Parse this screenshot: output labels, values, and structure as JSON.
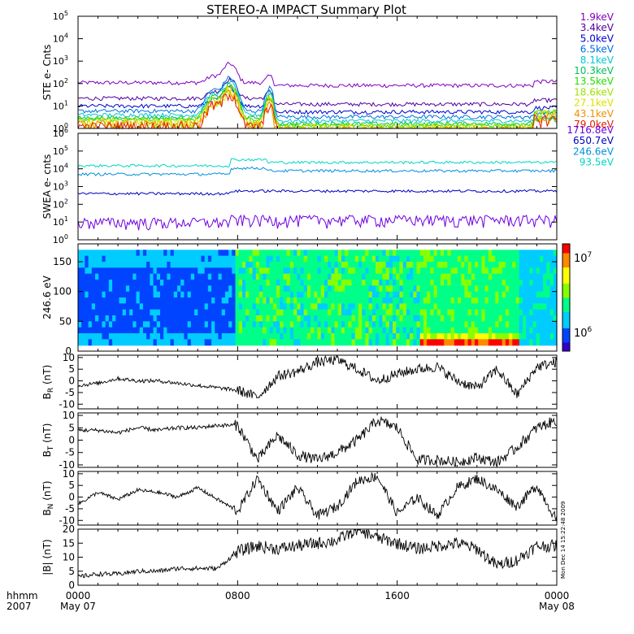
{
  "title": "STEREO-A IMPACT Summary Plot",
  "time_axis": {
    "hhmm_label": "hhmm",
    "year_label": "2007",
    "ticks": [
      {
        "time": "0000",
        "date": "May 07",
        "hours": 0
      },
      {
        "time": "0800",
        "date": "",
        "hours": 8
      },
      {
        "time": "1600",
        "date": "",
        "hours": 16
      },
      {
        "time": "0000",
        "date": "May 08",
        "hours": 24
      }
    ],
    "range_hours": [
      0,
      24
    ]
  },
  "timestamp": "Mon Dec 14 15:22:48 2009",
  "colorbar": {
    "top_label_base": "10",
    "top_label_exp": "7",
    "bottom_label_base": "10",
    "bottom_label_exp": "6",
    "range": [
      1000000,
      10000000
    ],
    "colors": [
      "#3300cc",
      "#0044ff",
      "#00ccff",
      "#00ff88",
      "#88ff00",
      "#ffff00",
      "#ff8800",
      "#ff0000"
    ]
  },
  "chart_data": [
    {
      "id": "ste",
      "type": "line",
      "ylabel": "STE e- Cnts",
      "yscale": "log",
      "ylim": [
        1,
        100000
      ],
      "yticks": [
        {
          "base": "10",
          "exp": "0"
        },
        {
          "base": "10",
          "exp": "1"
        },
        {
          "base": "10",
          "exp": "2"
        },
        {
          "base": "10",
          "exp": "3"
        },
        {
          "base": "10",
          "exp": "4"
        },
        {
          "base": "10",
          "exp": "5"
        }
      ],
      "series": [
        {
          "name": "1.9keV",
          "color": "#8000c0",
          "baseline": 110
        },
        {
          "name": "3.4keV",
          "color": "#5000a0",
          "baseline": 22
        },
        {
          "name": "5.0keV",
          "color": "#0000d0",
          "baseline": 10
        },
        {
          "name": "6.5keV",
          "color": "#0070e0",
          "baseline": 6
        },
        {
          "name": "8.1keV",
          "color": "#00c8d0",
          "baseline": 4
        },
        {
          "name": "10.3keV",
          "color": "#00c060",
          "baseline": 3
        },
        {
          "name": "13.5keV",
          "color": "#20e000",
          "baseline": 2.5
        },
        {
          "name": "18.6keV",
          "color": "#a0e000",
          "baseline": 2
        },
        {
          "name": "27.1keV",
          "color": "#e0e000",
          "baseline": 1.7
        },
        {
          "name": "43.1keV",
          "color": "#f09000",
          "baseline": 1.4
        },
        {
          "name": "79.0keV",
          "color": "#e02000",
          "baseline": 1.2
        }
      ]
    },
    {
      "id": "swea",
      "type": "line",
      "ylabel": "SWEA e- cnts",
      "yscale": "log",
      "ylim": [
        1,
        1000000
      ],
      "yticks": [
        {
          "base": "10",
          "exp": "0"
        },
        {
          "base": "10",
          "exp": "1"
        },
        {
          "base": "10",
          "exp": "2"
        },
        {
          "base": "10",
          "exp": "3"
        },
        {
          "base": "10",
          "exp": "4"
        },
        {
          "base": "10",
          "exp": "5"
        },
        {
          "base": "10",
          "exp": "6"
        }
      ],
      "series": [
        {
          "name": "1716.8eV",
          "color": "#7000e0",
          "baseline": 10
        },
        {
          "name": "650.7eV",
          "color": "#0000c0",
          "baseline": 400
        },
        {
          "name": "246.6eV",
          "color": "#0090e0",
          "baseline": 5000
        },
        {
          "name": "93.5eV",
          "color": "#00d8c0",
          "baseline": 15000
        }
      ]
    },
    {
      "id": "pad",
      "type": "heatmap",
      "ylabel": "246.6 eV",
      "ylim": [
        0,
        180
      ],
      "yticks": [
        "0",
        "50",
        "100",
        "150"
      ],
      "ytick_values": [
        0,
        50,
        100,
        150
      ]
    },
    {
      "id": "br",
      "type": "line",
      "ylabel_main": "B",
      "ylabel_sub": "R",
      "ylabel_unit": " (nT)",
      "ylim": [
        -12,
        11
      ],
      "yticks": [
        "-10",
        "-5",
        "0",
        "5",
        "10"
      ],
      "ytick_values": [
        -10,
        -5,
        0,
        5,
        10
      ],
      "x": [
        0,
        1,
        2,
        3,
        4,
        5,
        6,
        7,
        8,
        9,
        10,
        11,
        12,
        13,
        14,
        15,
        16,
        17,
        18,
        19,
        20,
        21,
        22,
        23,
        24
      ],
      "y": [
        -2,
        -1,
        1,
        0,
        0,
        -1,
        -2,
        -3,
        -4,
        -7,
        2,
        4,
        8,
        9,
        5,
        0,
        3,
        5,
        6,
        0,
        -3,
        5,
        -6,
        6,
        8
      ]
    },
    {
      "id": "bt",
      "type": "line",
      "ylabel_main": "B",
      "ylabel_sub": "T",
      "ylabel_unit": " (nT)",
      "ylim": [
        -11,
        11
      ],
      "yticks": [
        "-10",
        "-5",
        "0",
        "5",
        "10"
      ],
      "ytick_values": [
        -10,
        -5,
        0,
        5,
        10
      ],
      "x": [
        0,
        1,
        2,
        3,
        4,
        5,
        6,
        7,
        8,
        9,
        10,
        11,
        12,
        13,
        14,
        15,
        16,
        17,
        18,
        19,
        20,
        21,
        22,
        23,
        24
      ],
      "y": [
        4,
        4,
        3,
        5,
        4,
        5,
        5,
        6,
        6,
        -8,
        2,
        -6,
        -8,
        -5,
        0,
        8,
        5,
        -8,
        -8,
        -9,
        -7,
        -9,
        -3,
        5,
        8
      ]
    },
    {
      "id": "bn",
      "type": "line",
      "ylabel_main": "B",
      "ylabel_sub": "N",
      "ylabel_unit": " (nT)",
      "ylim": [
        -12,
        11
      ],
      "yticks": [
        "-10",
        "-5",
        "0",
        "5",
        "10"
      ],
      "ytick_values": [
        -10,
        -5,
        0,
        5,
        10
      ],
      "x": [
        0,
        1,
        2,
        3,
        4,
        5,
        6,
        7,
        8,
        9,
        10,
        11,
        12,
        13,
        14,
        15,
        16,
        17,
        18,
        19,
        20,
        21,
        22,
        23,
        24
      ],
      "y": [
        -3,
        2,
        -1,
        3,
        2,
        0,
        4,
        -1,
        -6,
        8,
        -6,
        4,
        -8,
        -4,
        7,
        9,
        -7,
        0,
        -8,
        4,
        8,
        3,
        -4,
        5,
        -10
      ]
    },
    {
      "id": "bmag",
      "type": "line",
      "ylabel_main": "|B|",
      "ylabel_sub": "",
      "ylabel_unit": " (nT)",
      "ylim": [
        0,
        20
      ],
      "yticks": [
        "0",
        "5",
        "10",
        "15",
        "20"
      ],
      "ytick_values": [
        0,
        5,
        10,
        15,
        20
      ],
      "x": [
        0,
        1,
        2,
        3,
        4,
        5,
        6,
        7,
        8,
        9,
        10,
        11,
        12,
        13,
        14,
        15,
        16,
        17,
        18,
        19,
        20,
        21,
        22,
        23,
        24
      ],
      "y": [
        3,
        4,
        4,
        5,
        5,
        6,
        6,
        6,
        12,
        14,
        13,
        14,
        15,
        16,
        20,
        17,
        15,
        13,
        14,
        15,
        13,
        7,
        9,
        14,
        14
      ]
    }
  ]
}
